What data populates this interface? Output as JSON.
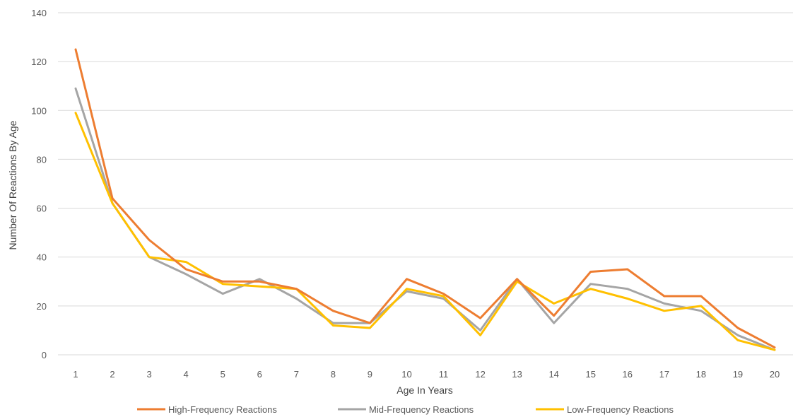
{
  "chart_data": {
    "type": "line",
    "title": "",
    "xlabel": "Age In Years",
    "ylabel": "Number Of Reactions By Age",
    "ylim": [
      0,
      140
    ],
    "yticks": [
      0,
      20,
      40,
      60,
      80,
      100,
      120,
      140
    ],
    "grid": true,
    "legend_position": "bottom",
    "categories": [
      "1",
      "2",
      "3",
      "4",
      "5",
      "6",
      "7",
      "8",
      "9",
      "10",
      "11",
      "12",
      "13",
      "14",
      "15",
      "16",
      "17",
      "18",
      "19",
      "20"
    ],
    "series": [
      {
        "name": "High-Frequency Reactions",
        "color": "#ED7D31",
        "values": [
          125,
          64,
          47,
          35,
          30,
          30,
          27,
          18,
          13,
          31,
          25,
          15,
          31,
          16,
          34,
          35,
          24,
          24,
          11,
          3
        ]
      },
      {
        "name": "Mid-Frequency Reactions",
        "color": "#A5A5A5",
        "values": [
          109,
          62,
          40,
          33,
          25,
          31,
          23,
          13,
          13,
          26,
          23,
          10,
          31,
          13,
          29,
          27,
          21,
          18,
          8,
          2
        ]
      },
      {
        "name": "Low-Frequency Reactions",
        "color": "#FFC000",
        "values": [
          99,
          62,
          40,
          38,
          29,
          28,
          27,
          12,
          11,
          27,
          24,
          8,
          30,
          21,
          27,
          23,
          18,
          20,
          6,
          2
        ]
      }
    ]
  }
}
